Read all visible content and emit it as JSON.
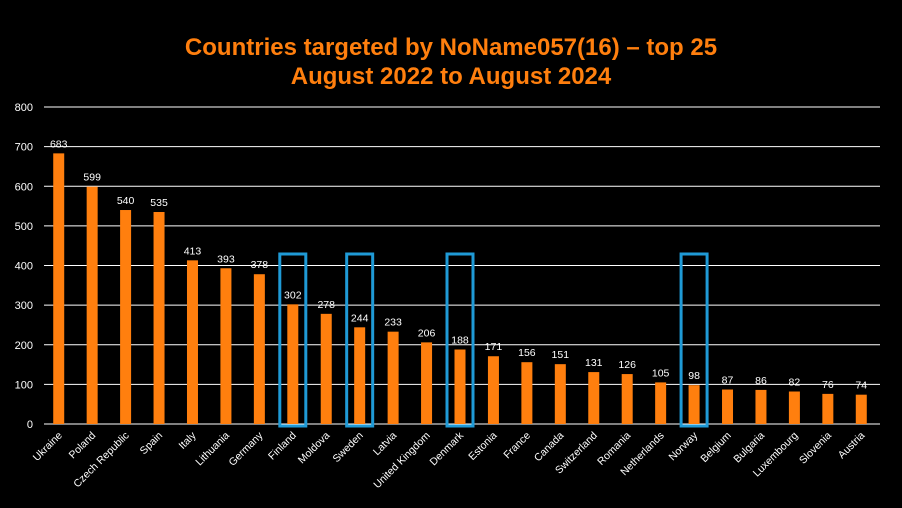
{
  "chart_data": {
    "type": "bar",
    "title_lines": [
      "Countries targeted by NoName057(16) – top 25",
      "August 2022 to August 2024"
    ],
    "categories": [
      "Ukraine",
      "Poland",
      "Czech Republic",
      "Spain",
      "Italy",
      "Lithuania",
      "Germany",
      "Finland",
      "Moldova",
      "Sweden",
      "Latvia",
      "United Kingdom",
      "Denmark",
      "Estonia",
      "France",
      "Canada",
      "Switzerland",
      "Romania",
      "Netherlands",
      "Norway",
      "Belgium",
      "Bulgaria",
      "Luxembourg",
      "Slovenia",
      "Austria"
    ],
    "values": [
      683,
      599,
      540,
      535,
      413,
      393,
      378,
      302,
      278,
      244,
      233,
      206,
      188,
      171,
      156,
      151,
      131,
      126,
      105,
      98,
      87,
      86,
      82,
      76,
      74
    ],
    "highlighted": [
      "Finland",
      "Sweden",
      "Denmark",
      "Norway"
    ],
    "ylim": [
      0,
      800
    ],
    "yticks": [
      0,
      100,
      200,
      300,
      400,
      500,
      600,
      700,
      800
    ],
    "grid": true,
    "legend": "none",
    "colors": {
      "background": "#000000",
      "bar": "#ff7f0e",
      "title": "#ff7f0e",
      "text": "#ffffff",
      "grid": "#ffffff",
      "highlight": "#1f9ad6"
    }
  }
}
